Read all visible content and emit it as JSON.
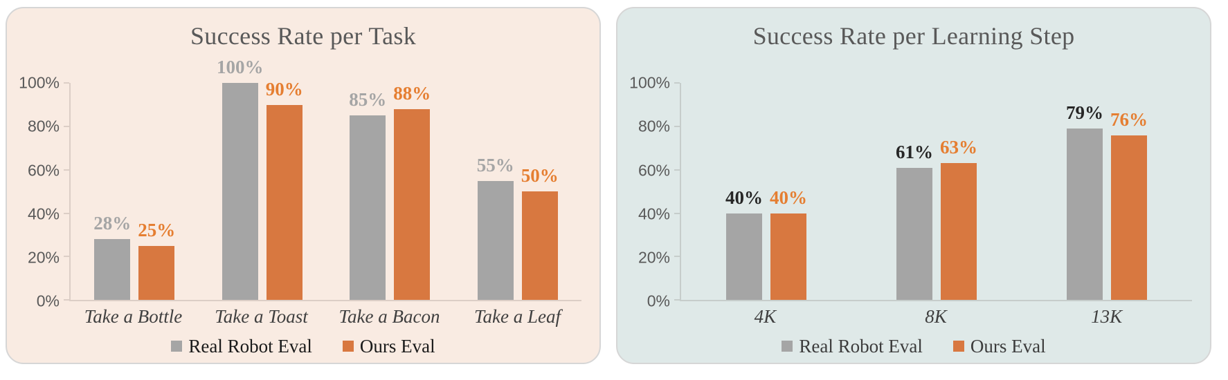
{
  "page": {
    "background": "#ffffff"
  },
  "chart_data": [
    {
      "type": "bar",
      "title": "Success Rate per Task",
      "panel_bg": "#f9ebe2",
      "legend_text_color": "#1a1a1a",
      "ylim": [
        0,
        100
      ],
      "grid": false,
      "legend_position": "bottom",
      "yticks": [
        "0%",
        "20%",
        "40%",
        "60%",
        "80%",
        "100%"
      ],
      "categories": [
        "Take a Bottle",
        "Take a Toast",
        "Take a Bacon",
        "Take a Leaf"
      ],
      "series": [
        {
          "name": "Real Robot Eval",
          "color": "#a5a5a5",
          "label_color": "#a5a5a5",
          "values": [
            28,
            100,
            85,
            55
          ],
          "labels": [
            "28%",
            "100%",
            "85%",
            "55%"
          ]
        },
        {
          "name": "Ours Eval",
          "color": "#d87840",
          "label_color": "#e57e31",
          "values": [
            25,
            90,
            88,
            50
          ],
          "labels": [
            "25%",
            "90%",
            "88%",
            "50%"
          ]
        }
      ]
    },
    {
      "type": "bar",
      "title": "Success Rate per Learning Step",
      "panel_bg": "#dfe9e8",
      "legend_text_color": "#3c3c3c",
      "ylim": [
        0,
        100
      ],
      "grid": false,
      "legend_position": "bottom",
      "yticks": [
        "0%",
        "20%",
        "40%",
        "60%",
        "80%",
        "100%"
      ],
      "categories": [
        "4K",
        "8K",
        "13K"
      ],
      "series": [
        {
          "name": "Real Robot Eval",
          "color": "#a5a5a5",
          "label_color": "#262626",
          "values": [
            40,
            61,
            79
          ],
          "labels": [
            "40%",
            "61%",
            "79%"
          ]
        },
        {
          "name": "Ours Eval",
          "color": "#d87840",
          "label_color": "#e57e31",
          "values": [
            40,
            63,
            76
          ],
          "labels": [
            "40%",
            "63%",
            "76%"
          ]
        }
      ]
    }
  ]
}
